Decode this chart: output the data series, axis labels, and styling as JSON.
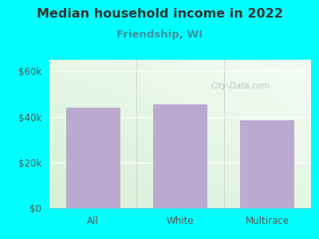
{
  "title": "Median household income in 2022",
  "subtitle": "Friendship, WI",
  "categories": [
    "All",
    "White",
    "Multirace"
  ],
  "values": [
    44000,
    45500,
    38500
  ],
  "bar_color": "#bbaad0",
  "bg_color": "#00ffff",
  "plot_bg_topleft": "#d8f0d8",
  "plot_bg_topright": "#f0f8f0",
  "plot_bg_bottom": "#e8f5e8",
  "title_color": "#333333",
  "subtitle_color": "#3d8fa0",
  "tick_color": "#555555",
  "ytick_labels": [
    "$0",
    "$20k",
    "$40k",
    "$60k"
  ],
  "ytick_values": [
    0,
    20000,
    40000,
    60000
  ],
  "ylim": [
    0,
    65000
  ],
  "watermark": "City-Data.com",
  "title_fontsize": 11.5,
  "subtitle_fontsize": 9.5,
  "tick_fontsize": 8.5
}
